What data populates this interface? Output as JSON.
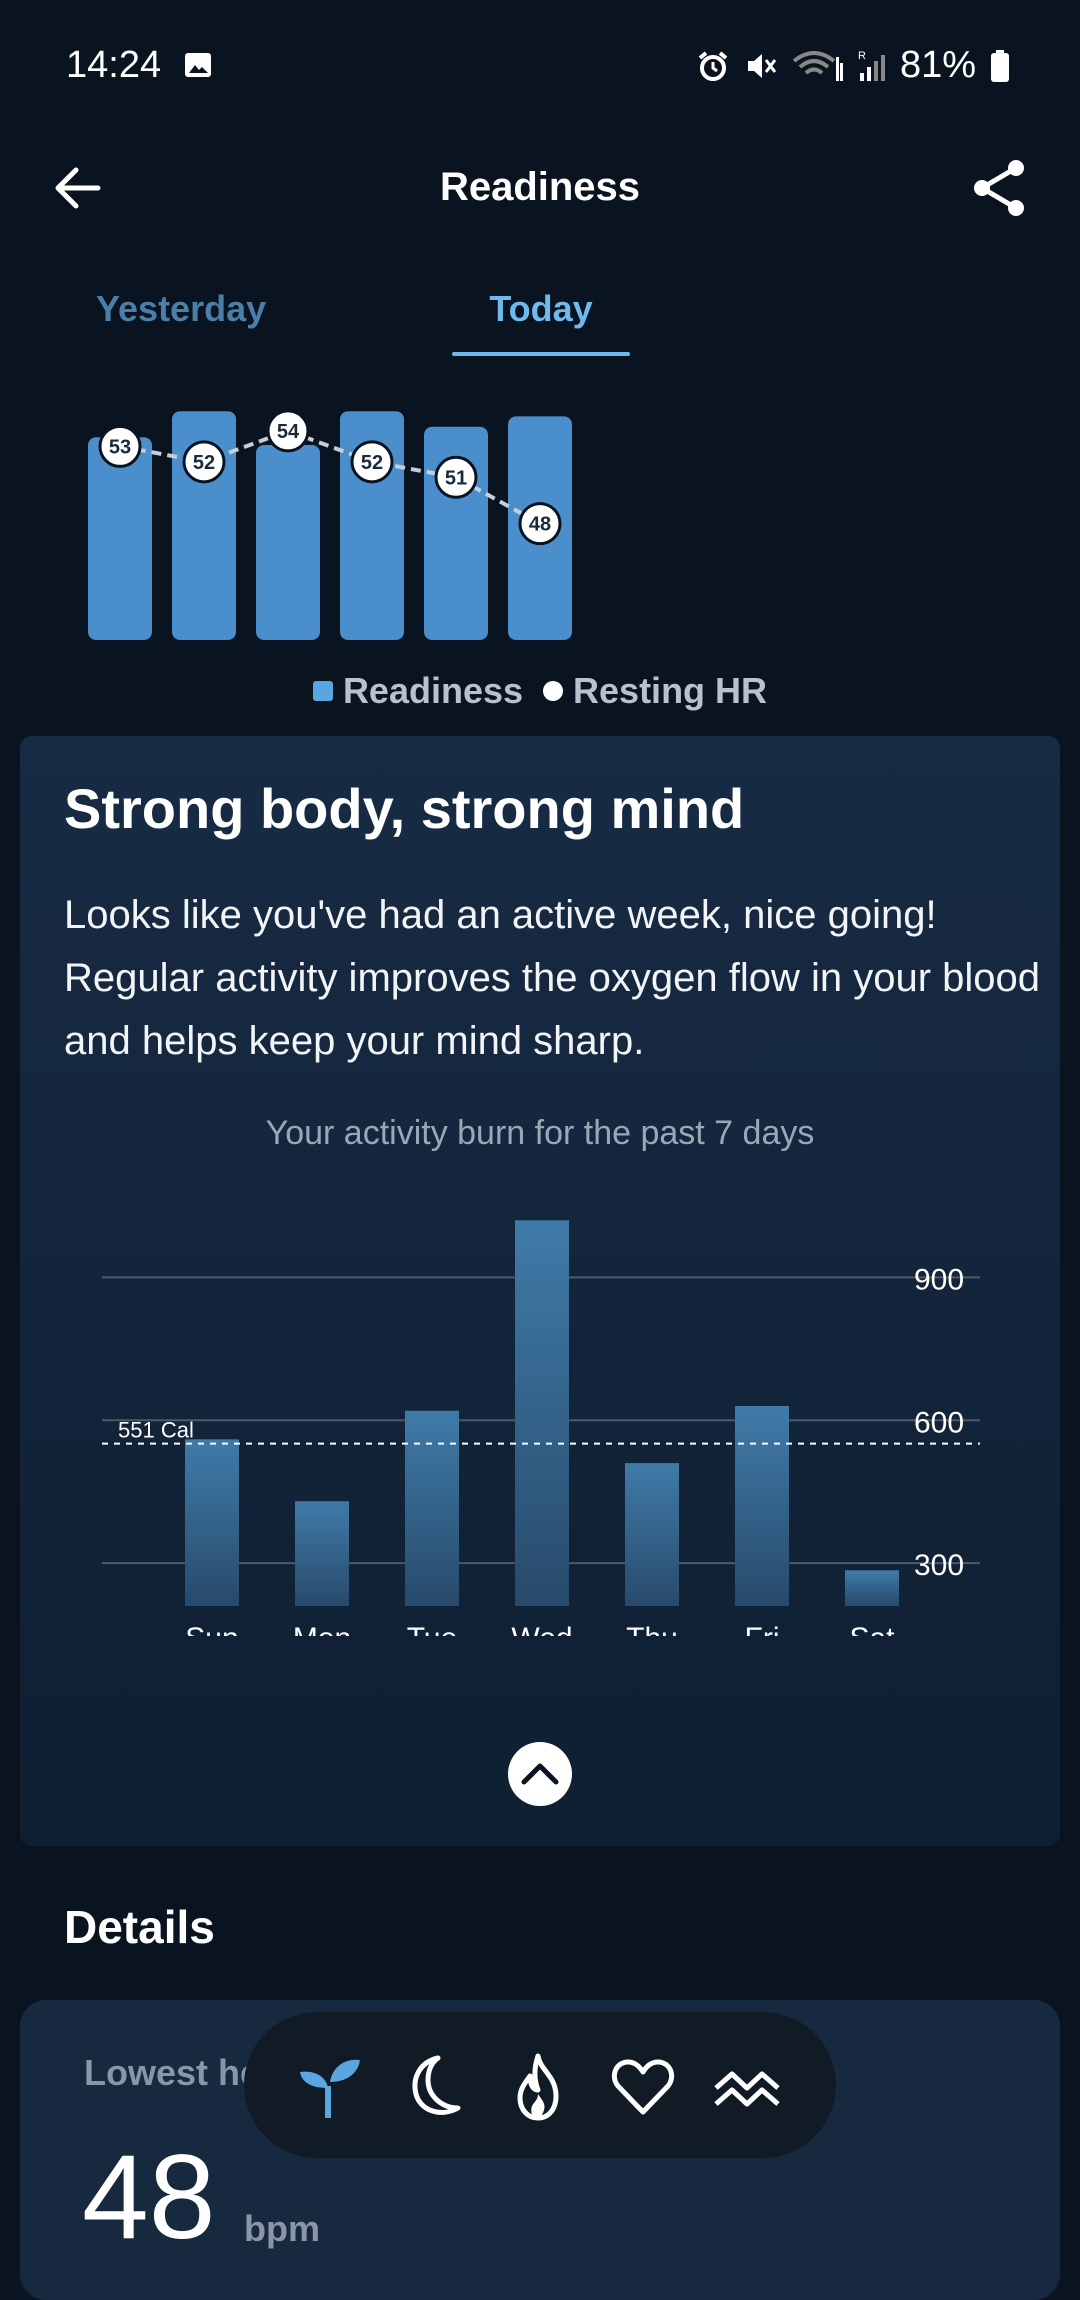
{
  "status_bar": {
    "time": "14:24",
    "battery": "81%"
  },
  "header": {
    "title": "Readiness"
  },
  "tabs": [
    {
      "label": "Yesterday",
      "active": false
    },
    {
      "label": "Today",
      "active": true
    }
  ],
  "readiness_chart": {
    "readiness_values": [
      0.78,
      0.88,
      0.75,
      0.88,
      0.82,
      0.86
    ],
    "resting_hr": [
      53,
      52,
      54,
      52,
      51,
      48
    ],
    "legend": [
      "Readiness",
      "Resting HR"
    ],
    "colors": {
      "bar": "#4a8fcb",
      "line": "#c5ced7"
    }
  },
  "insight_card": {
    "title": "Strong body, strong mind",
    "body": "Looks like you've had an active week, nice going! Regular activity improves the oxygen flow in your blood and helps keep your mind sharp.",
    "chart_caption": "Your activity burn for the past 7 days"
  },
  "chart_data": {
    "type": "bar",
    "categories": [
      "Sun",
      "Mon",
      "Tue",
      "Wed",
      "Thu",
      "Fri",
      "Sat"
    ],
    "values": [
      560,
      430,
      620,
      1020,
      510,
      630,
      285
    ],
    "ylim": [
      210,
      1050
    ],
    "y_ticks": [
      "300",
      "600",
      "900"
    ],
    "reference_line": {
      "value": 551,
      "label": "551 Cal"
    },
    "grid": true
  },
  "details": {
    "title": "Details",
    "card_label": "Lowest heart rate",
    "value": "48",
    "unit": "bpm"
  },
  "bottom_nav": [
    {
      "icon": "sprout-icon",
      "active": true
    },
    {
      "icon": "moon-icon",
      "active": false
    },
    {
      "icon": "flame-icon",
      "active": false
    },
    {
      "icon": "heart-icon",
      "active": false
    },
    {
      "icon": "waves-icon",
      "active": false
    }
  ]
}
